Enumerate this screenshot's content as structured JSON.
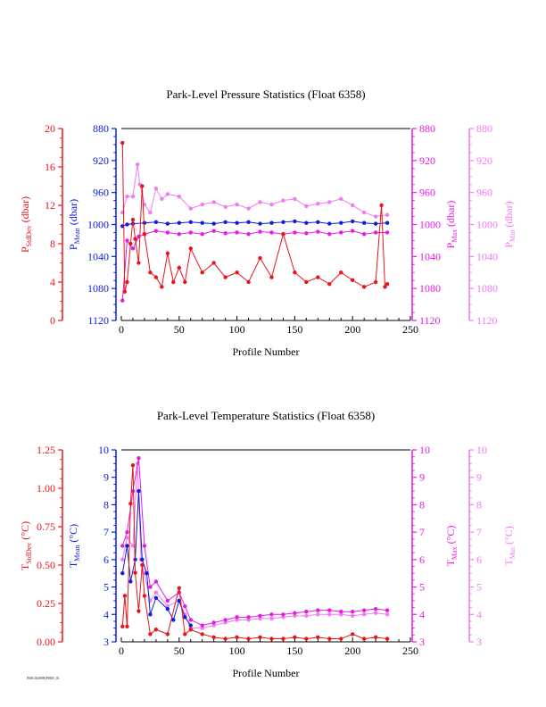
{
  "colors": {
    "stddev": "#e8141c",
    "mean": "#0b1ed9",
    "max": "#e619e6",
    "min": "#f27af2",
    "axis": "#000000"
  },
  "footer": "PASCO(2008) P0305_01",
  "chart_data": [
    {
      "type": "line",
      "title": "Park-Level Pressure Statistics (Float 6358)",
      "xlabel": "Profile Number",
      "xlim": [
        0,
        250
      ],
      "xticks": [
        0,
        50,
        100,
        150,
        200,
        250
      ],
      "axes": {
        "stddev": {
          "label": "P",
          "sub": "StdDev",
          "unit": " (dbar)",
          "ylim": [
            0,
            20
          ],
          "ticks": [
            "0",
            "4",
            "8",
            "12",
            "16",
            "20"
          ],
          "reversed": false
        },
        "mean": {
          "label": "P",
          "sub": "Mean",
          "unit": " (dbar)",
          "ylim": [
            880,
            1120
          ],
          "ticks": [
            "880",
            "920",
            "960",
            "1000",
            "1040",
            "1080",
            "1120"
          ],
          "reversed": true
        },
        "max": {
          "label": "P",
          "sub": "Max",
          "unit": " (dbar)",
          "ylim": [
            880,
            1120
          ],
          "ticks": [
            "880",
            "920",
            "960",
            "1000",
            "1040",
            "1080",
            "1120"
          ],
          "reversed": true
        },
        "min": {
          "label": "P",
          "sub": "Min",
          "unit": " (dbar)",
          "ylim": [
            880,
            1120
          ],
          "ticks": [
            "880",
            "920",
            "960",
            "1000",
            "1040",
            "1080",
            "1120"
          ],
          "reversed": true
        }
      },
      "series": [
        {
          "key": "min",
          "x": [
            1,
            5,
            10,
            14,
            16,
            20,
            25,
            30,
            35,
            40,
            50,
            60,
            70,
            80,
            90,
            100,
            110,
            120,
            130,
            140,
            150,
            160,
            170,
            180,
            190,
            200,
            210,
            220,
            230
          ],
          "y": [
            985,
            965,
            965,
            925,
            950,
            975,
            985,
            955,
            968,
            962,
            965,
            980,
            975,
            972,
            978,
            975,
            980,
            972,
            975,
            970,
            968,
            977,
            974,
            972,
            968,
            976,
            985,
            990,
            988
          ]
        },
        {
          "key": "mean",
          "x": [
            1,
            5,
            10,
            20,
            30,
            40,
            50,
            60,
            70,
            80,
            90,
            100,
            110,
            120,
            130,
            140,
            150,
            160,
            170,
            180,
            190,
            200,
            210,
            220,
            230
          ],
          "y": [
            1002,
            1000,
            999,
            998,
            997,
            999,
            998,
            997,
            998,
            999,
            997,
            998,
            997,
            999,
            998,
            997,
            996,
            998,
            997,
            999,
            998,
            996,
            998,
            999,
            998
          ]
        },
        {
          "key": "max",
          "x": [
            1,
            5,
            10,
            15,
            20,
            30,
            40,
            50,
            60,
            70,
            80,
            90,
            100,
            110,
            120,
            130,
            140,
            150,
            160,
            170,
            180,
            190,
            200,
            210,
            220,
            230
          ],
          "y": [
            1095,
            1020,
            1030,
            1015,
            1012,
            1008,
            1010,
            1012,
            1010,
            1012,
            1008,
            1011,
            1010,
            1012,
            1009,
            1010,
            1012,
            1010,
            1011,
            1009,
            1012,
            1010,
            1008,
            1012,
            1010,
            1010
          ]
        },
        {
          "key": "stddev",
          "x": [
            1,
            3,
            5,
            8,
            10,
            12,
            15,
            18,
            20,
            25,
            30,
            35,
            40,
            45,
            50,
            55,
            60,
            70,
            80,
            90,
            100,
            110,
            120,
            130,
            140,
            150,
            160,
            170,
            180,
            190,
            200,
            210,
            220,
            225,
            228,
            230
          ],
          "y": [
            18.5,
            3.0,
            4.0,
            8.0,
            10.5,
            8.5,
            6.0,
            14.0,
            9.0,
            5.0,
            4.5,
            3.5,
            7.0,
            4.0,
            5.5,
            4.0,
            7.5,
            5.0,
            6.0,
            4.5,
            5.0,
            4.0,
            6.5,
            4.5,
            9.0,
            5.0,
            4.0,
            4.5,
            3.8,
            5.0,
            4.2,
            3.5,
            4.0,
            12.0,
            3.5,
            3.8
          ]
        }
      ]
    },
    {
      "type": "line",
      "title": "Park-Level Temperature Statistics (Float 6358)",
      "xlabel": "Profile Number",
      "xlim": [
        0,
        250
      ],
      "xticks": [
        0,
        50,
        100,
        150,
        200,
        250
      ],
      "axes": {
        "stddev": {
          "label": "T",
          "sub": "StdDev",
          "unit": " (°C)",
          "ylim": [
            0,
            1.25
          ],
          "ticks": [
            "0.00",
            "0.25",
            "0.50",
            "0.75",
            "1.00",
            "1.25"
          ],
          "reversed": false
        },
        "mean": {
          "label": "T",
          "sub": "Mean",
          "unit": " (°C)",
          "ylim": [
            3,
            10
          ],
          "ticks": [
            "3",
            "4",
            "5",
            "6",
            "7",
            "8",
            "9",
            "10"
          ],
          "reversed": false
        },
        "max": {
          "label": "T",
          "sub": "Max",
          "unit": " (°C)",
          "ylim": [
            3,
            10
          ],
          "ticks": [
            "3",
            "4",
            "5",
            "6",
            "7",
            "8",
            "9",
            "10"
          ],
          "reversed": false
        },
        "min": {
          "label": "T",
          "sub": "Min",
          "unit": " (°C)",
          "ylim": [
            3,
            10
          ],
          "ticks": [
            "3",
            "4",
            "5",
            "6",
            "7",
            "8",
            "9",
            "10"
          ],
          "reversed": false
        }
      },
      "series": [
        {
          "key": "min",
          "x": [
            1,
            5,
            10,
            14,
            17,
            20,
            25,
            30,
            40,
            50,
            55,
            60,
            70,
            80,
            90,
            100,
            110,
            120,
            130,
            140,
            150,
            160,
            170,
            180,
            190,
            200,
            210,
            220,
            230
          ],
          "y": [
            6.0,
            6.8,
            6.5,
            9.5,
            6.0,
            5.5,
            4.5,
            4.8,
            4.3,
            4.5,
            4.0,
            3.5,
            3.5,
            3.6,
            3.7,
            3.8,
            3.8,
            3.85,
            3.85,
            3.9,
            3.95,
            3.95,
            4.0,
            4.0,
            4.0,
            3.95,
            4.0,
            4.05,
            4.0
          ]
        },
        {
          "key": "max",
          "x": [
            1,
            5,
            10,
            15,
            20,
            25,
            30,
            40,
            50,
            55,
            60,
            70,
            80,
            90,
            100,
            110,
            120,
            130,
            140,
            150,
            160,
            170,
            180,
            190,
            200,
            210,
            220,
            230
          ],
          "y": [
            6.5,
            7.0,
            8.5,
            9.7,
            6.5,
            5.0,
            5.2,
            4.5,
            4.8,
            4.3,
            3.8,
            3.6,
            3.7,
            3.8,
            3.9,
            3.9,
            3.95,
            4.0,
            4.0,
            4.05,
            4.1,
            4.15,
            4.15,
            4.1,
            4.1,
            4.15,
            4.2,
            4.15
          ]
        },
        {
          "key": "mean",
          "x": [
            1,
            5,
            8,
            12,
            15,
            18,
            22,
            25,
            30,
            40,
            45,
            50,
            55,
            60
          ],
          "y": [
            5.5,
            6.5,
            5.2,
            6.0,
            8.5,
            6.0,
            5.5,
            4.0,
            4.6,
            4.2,
            3.8,
            4.5,
            3.9,
            3.6
          ]
        },
        {
          "key": "stddev",
          "x": [
            1,
            3,
            5,
            8,
            10,
            12,
            15,
            18,
            20,
            25,
            30,
            40,
            50,
            55,
            60,
            70,
            80,
            90,
            100,
            110,
            120,
            130,
            140,
            150,
            160,
            170,
            180,
            190,
            200,
            210,
            220,
            230
          ],
          "y": [
            0.1,
            0.3,
            0.1,
            0.9,
            1.15,
            0.45,
            0.2,
            0.5,
            0.3,
            0.05,
            0.08,
            0.05,
            0.35,
            0.05,
            0.08,
            0.05,
            0.03,
            0.02,
            0.03,
            0.02,
            0.03,
            0.02,
            0.02,
            0.03,
            0.02,
            0.03,
            0.02,
            0.02,
            0.05,
            0.02,
            0.03,
            0.02
          ]
        }
      ]
    }
  ]
}
